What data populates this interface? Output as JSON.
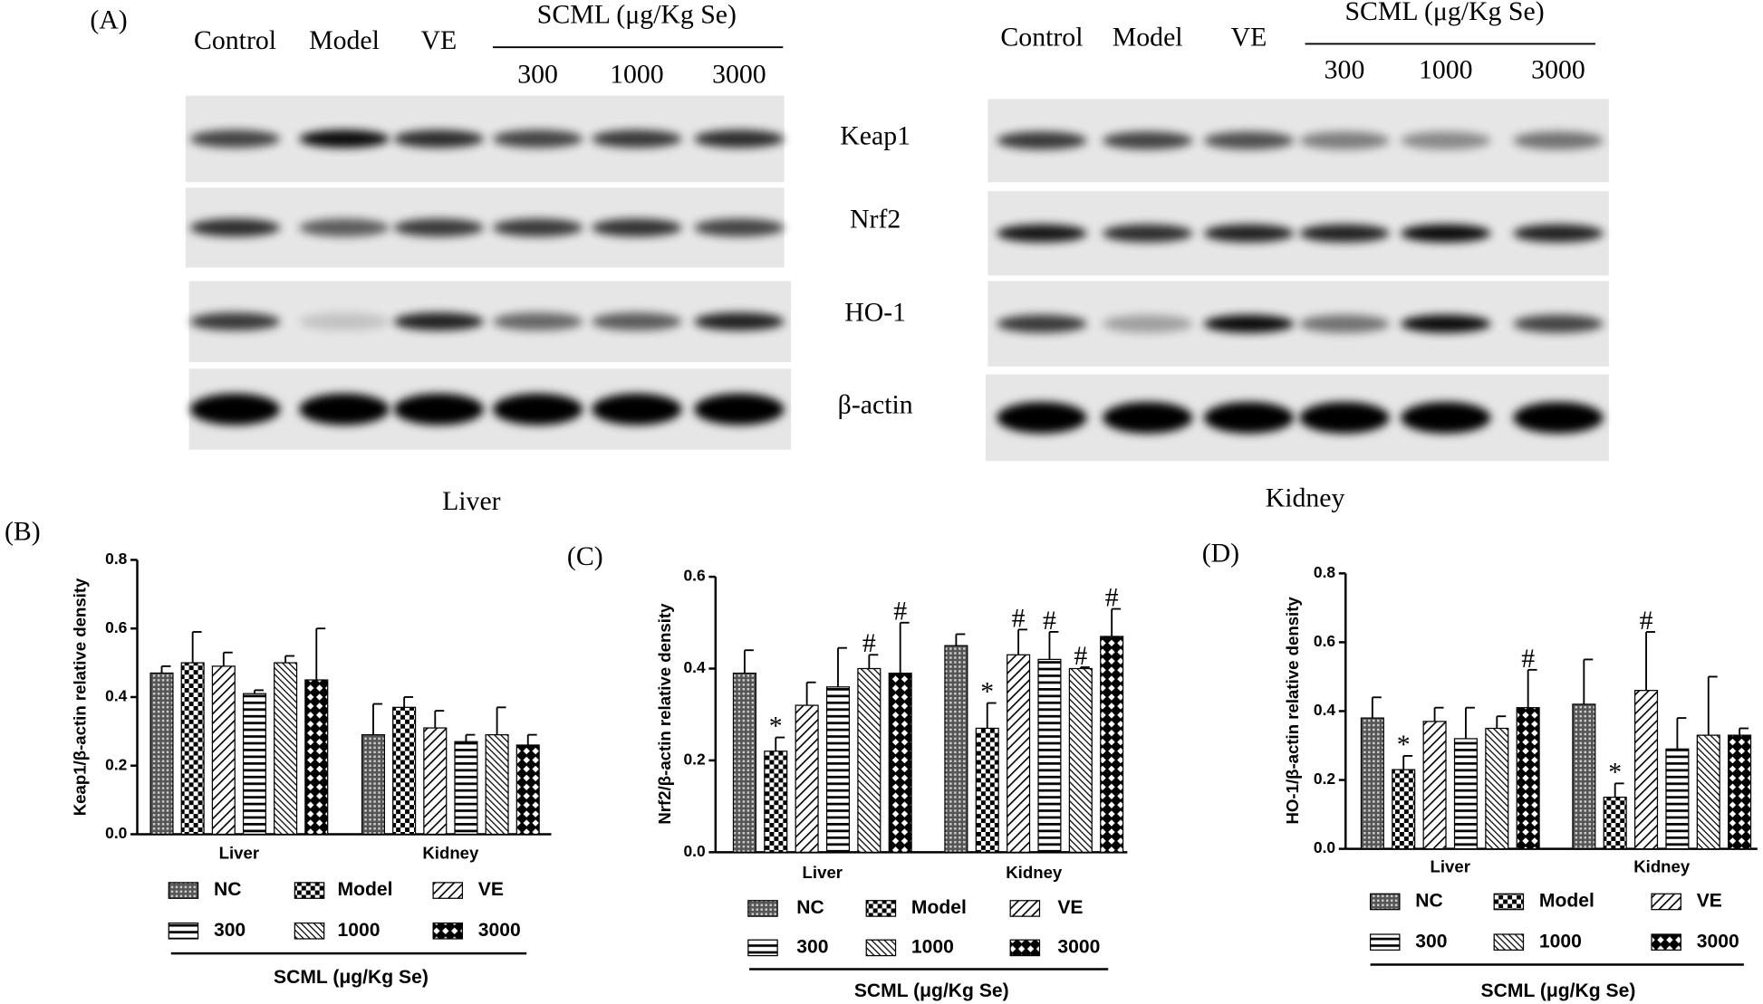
{
  "blot": {
    "panel_label": "(A)",
    "panels": [
      {
        "title": "Liver",
        "lanes": [
          "Control",
          "Model",
          "VE"
        ],
        "group_label": "SCML (μg/Kg Se)",
        "doses": [
          "300",
          "1000",
          "3000"
        ]
      },
      {
        "title": "Kidney",
        "lanes": [
          "Control",
          "Model",
          "VE"
        ],
        "group_label": "SCML (μg/Kg Se)",
        "doses": [
          "300",
          "1000",
          "3000"
        ]
      }
    ],
    "proteins": [
      "Keap1",
      "Nrf2",
      "HO-1",
      "β-actin"
    ]
  },
  "chart_data": [
    {
      "type": "bar",
      "panel_label": "(B)",
      "ylabel": "Keap1/β-actin relative density",
      "categories": [
        "Liver",
        "Kidney"
      ],
      "legend_title": "SCML (μg/Kg Se)",
      "ylim": [
        0,
        0.8
      ],
      "yticks": [
        {
          "value": 0,
          "label": "0.0"
        },
        0.2,
        0.4,
        0.6,
        0.8
      ],
      "series": [
        {
          "name": "NC",
          "pattern": "crosshatch",
          "values": [
            0.47,
            0.29
          ],
          "errors": [
            0.02,
            0.09
          ]
        },
        {
          "name": "Model",
          "pattern": "checker",
          "values": [
            0.5,
            0.37
          ],
          "errors": [
            0.09,
            0.03
          ]
        },
        {
          "name": "VE",
          "pattern": "diagonal",
          "values": [
            0.49,
            0.31
          ],
          "errors": [
            0.04,
            0.05
          ]
        },
        {
          "name": "300",
          "pattern": "horizontal",
          "values": [
            0.41,
            0.27
          ],
          "errors": [
            0.01,
            0.02
          ]
        },
        {
          "name": "1000",
          "pattern": "back-diagonal",
          "values": [
            0.5,
            0.29
          ],
          "errors": [
            0.02,
            0.08
          ]
        },
        {
          "name": "3000",
          "pattern": "cross",
          "values": [
            0.45,
            0.26
          ],
          "errors": [
            0.15,
            0.03
          ]
        }
      ]
    },
    {
      "type": "bar",
      "panel_label": "(C)",
      "ylabel": "Nrf2/β-actin relative density",
      "categories": [
        "Liver",
        "Kidney"
      ],
      "legend_title": "SCML (μg/Kg Se)",
      "ylim": [
        0,
        0.6
      ],
      "yticks": [
        {
          "value": 0,
          "label": "0.0"
        },
        0.2,
        0.4,
        0.6
      ],
      "series": [
        {
          "name": "NC",
          "pattern": "crosshatch",
          "values": [
            0.39,
            0.45
          ],
          "errors": [
            0.05,
            0.025
          ],
          "annotations": [
            null,
            null
          ]
        },
        {
          "name": "Model",
          "pattern": "checker",
          "values": [
            0.22,
            0.27
          ],
          "errors": [
            0.03,
            0.055
          ],
          "annotations": [
            "*",
            "*"
          ]
        },
        {
          "name": "VE",
          "pattern": "diagonal",
          "values": [
            0.32,
            0.43
          ],
          "errors": [
            0.05,
            0.055
          ],
          "annotations": [
            null,
            "#"
          ]
        },
        {
          "name": "300",
          "pattern": "horizontal",
          "values": [
            0.36,
            0.42
          ],
          "errors": [
            0.085,
            0.06
          ],
          "annotations": [
            null,
            "#"
          ]
        },
        {
          "name": "1000",
          "pattern": "back-diagonal",
          "values": [
            0.4,
            0.4
          ],
          "errors": [
            0.03,
            0.003
          ],
          "annotations": [
            "#",
            "#"
          ]
        },
        {
          "name": "3000",
          "pattern": "cross",
          "values": [
            0.39,
            0.47
          ],
          "errors": [
            0.11,
            0.06
          ],
          "annotations": [
            "#",
            "#"
          ]
        }
      ]
    },
    {
      "type": "bar",
      "panel_label": "(D)",
      "ylabel": "HO-1/β-actin relative density",
      "categories": [
        "Liver",
        "Kidney"
      ],
      "legend_title": "SCML (μg/Kg Se)",
      "ylim": [
        0,
        0.8
      ],
      "yticks": [
        {
          "value": 0,
          "label": "0.0"
        },
        0.2,
        0.4,
        0.6,
        0.8
      ],
      "series": [
        {
          "name": "NC",
          "pattern": "crosshatch",
          "values": [
            0.38,
            0.42
          ],
          "errors": [
            0.06,
            0.13
          ],
          "annotations": [
            null,
            null
          ]
        },
        {
          "name": "Model",
          "pattern": "checker",
          "values": [
            0.23,
            0.15
          ],
          "errors": [
            0.04,
            0.04
          ],
          "annotations": [
            "*",
            "*"
          ]
        },
        {
          "name": "VE",
          "pattern": "diagonal",
          "values": [
            0.37,
            0.46
          ],
          "errors": [
            0.04,
            0.17
          ],
          "annotations": [
            null,
            "#"
          ]
        },
        {
          "name": "300",
          "pattern": "horizontal",
          "values": [
            0.32,
            0.29
          ],
          "errors": [
            0.09,
            0.09
          ],
          "annotations": [
            null,
            null
          ]
        },
        {
          "name": "1000",
          "pattern": "back-diagonal",
          "values": [
            0.35,
            0.33
          ],
          "errors": [
            0.035,
            0.17
          ],
          "annotations": [
            null,
            null
          ]
        },
        {
          "name": "3000",
          "pattern": "cross",
          "values": [
            0.41,
            0.33
          ],
          "errors": [
            0.11,
            0.02
          ],
          "annotations": [
            "#",
            null
          ]
        }
      ]
    }
  ]
}
